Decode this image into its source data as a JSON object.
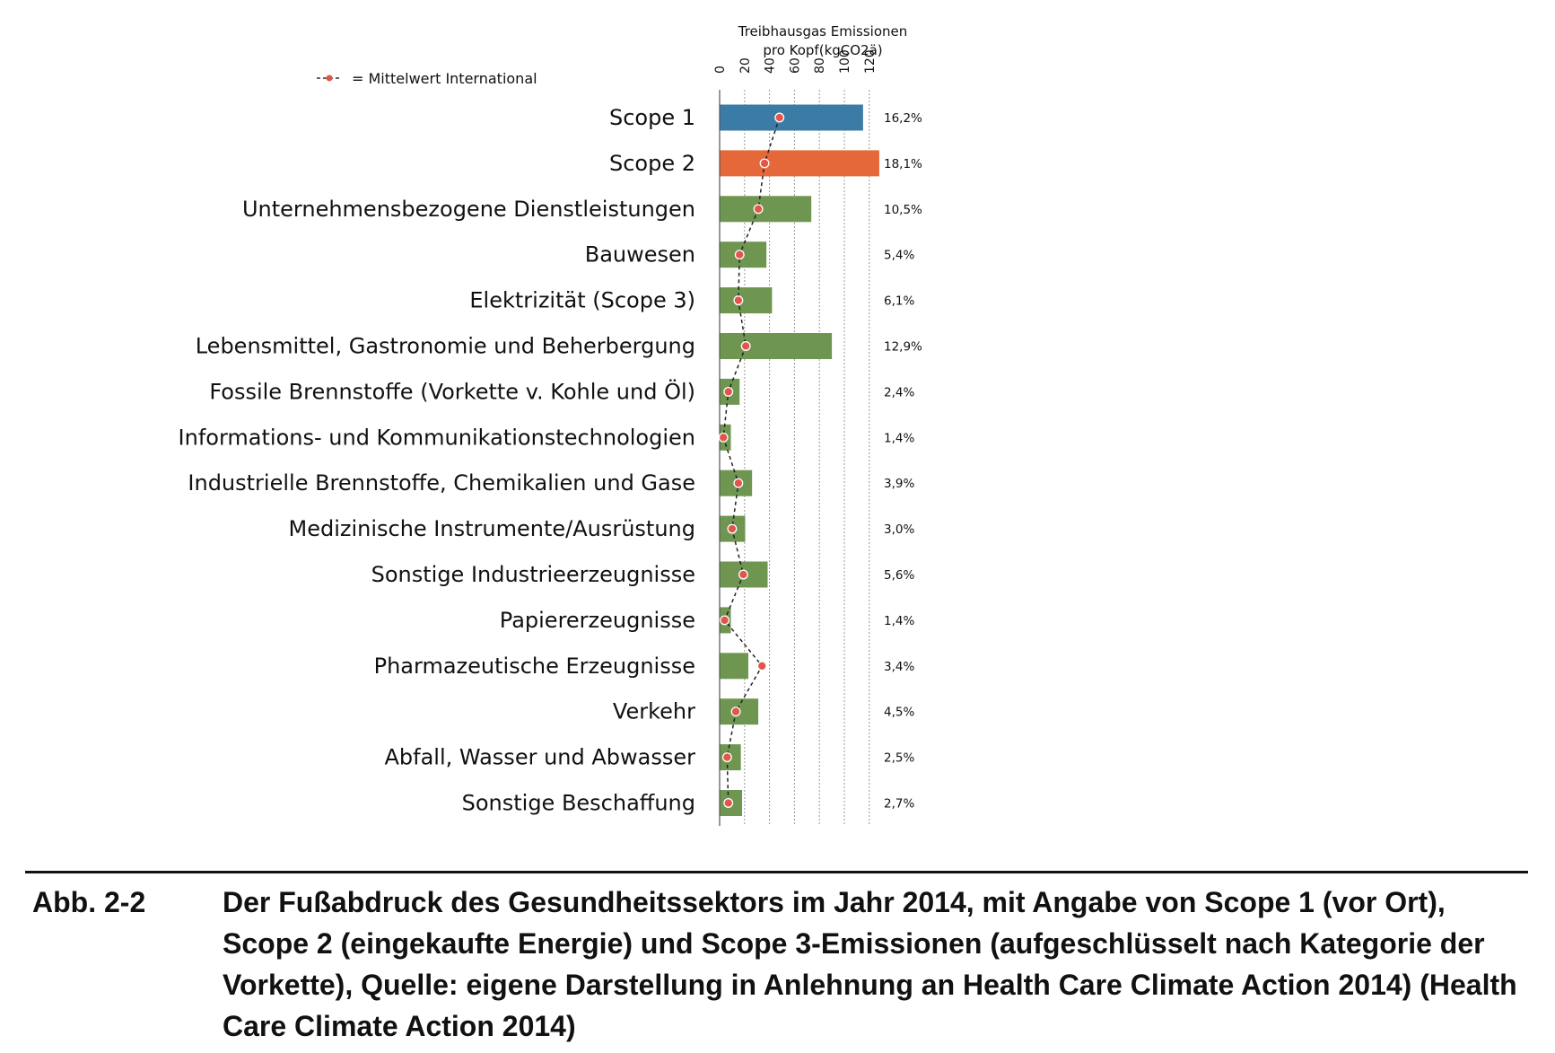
{
  "chart_data": {
    "type": "bar",
    "orientation": "horizontal",
    "axis_title_line1": "Treibhausgas Emissionen",
    "axis_title_line2": "pro Kopf(kgCO2ä)",
    "xticks": [
      "0",
      "20",
      "40",
      "60",
      "80",
      "100",
      "120"
    ],
    "xlim": [
      0,
      130
    ],
    "grid": true,
    "legend": {
      "marker_label": "= Mittelwert International",
      "placement": "top-left"
    },
    "categories": [
      "Scope 1",
      "Scope 2",
      "Unternehmensbezogene Dienstleistungen",
      "Bauwesen",
      "Elektrizität (Scope 3)",
      "Lebensmittel, Gastronomie und Beherbergung",
      "Fossile Brennstoffe (Vorkette v. Kohle und Öl)",
      "Informations- und Kommunikationstechnologien",
      "Industrielle Brennstoffe, Chemikalien und Gase",
      "Medizinische Instrumente/Ausrüstung",
      "Sonstige Industrieerzeugnisse",
      "Papiererzeugnisse",
      "Pharmazeutische Erzeugnisse",
      "Verkehr",
      "Abfall, Wasser und Abwasser",
      "Sonstige Beschaffung"
    ],
    "values": [
      115,
      128,
      73.5,
      37.5,
      42,
      90,
      16,
      9,
      26,
      20.5,
      38.5,
      9,
      23,
      31,
      17,
      18
    ],
    "international_mean": [
      48,
      36,
      31,
      16,
      15,
      21,
      7,
      3,
      15,
      10,
      19,
      4,
      34,
      13,
      6,
      7
    ],
    "shares": [
      "16,2%",
      "18,1%",
      "10,5%",
      "5,4%",
      "6,1%",
      "12,9%",
      "2,4%",
      "1,4%",
      "3,9%",
      "3,0%",
      "5,6%",
      "1,4%",
      "3,4%",
      "4,5%",
      "2,5%",
      "2,7%"
    ],
    "bar_colors": [
      "#3b7ca6",
      "#e5683a",
      "#6f9651",
      "#6f9651",
      "#6f9651",
      "#6f9651",
      "#6f9651",
      "#6f9651",
      "#6f9651",
      "#6f9651",
      "#6f9651",
      "#6f9651",
      "#6f9651",
      "#6f9651",
      "#6f9651",
      "#6f9651"
    ],
    "marker_color": "#e0564a"
  },
  "caption": {
    "number": "Abb. 2-2",
    "text": "Der Fußabdruck des Gesundheitssektors im Jahr 2014, mit Angabe von Scope 1 (vor Ort), Scope 2 (eingekaufte Energie) und Scope 3-Emissionen (aufgeschlüsselt nach Kategorie der Vorkette), Quelle: eigene Darstellung in Anlehnung an Health Care Climate Action 2014) (Health Care Climate Action 2014)"
  }
}
